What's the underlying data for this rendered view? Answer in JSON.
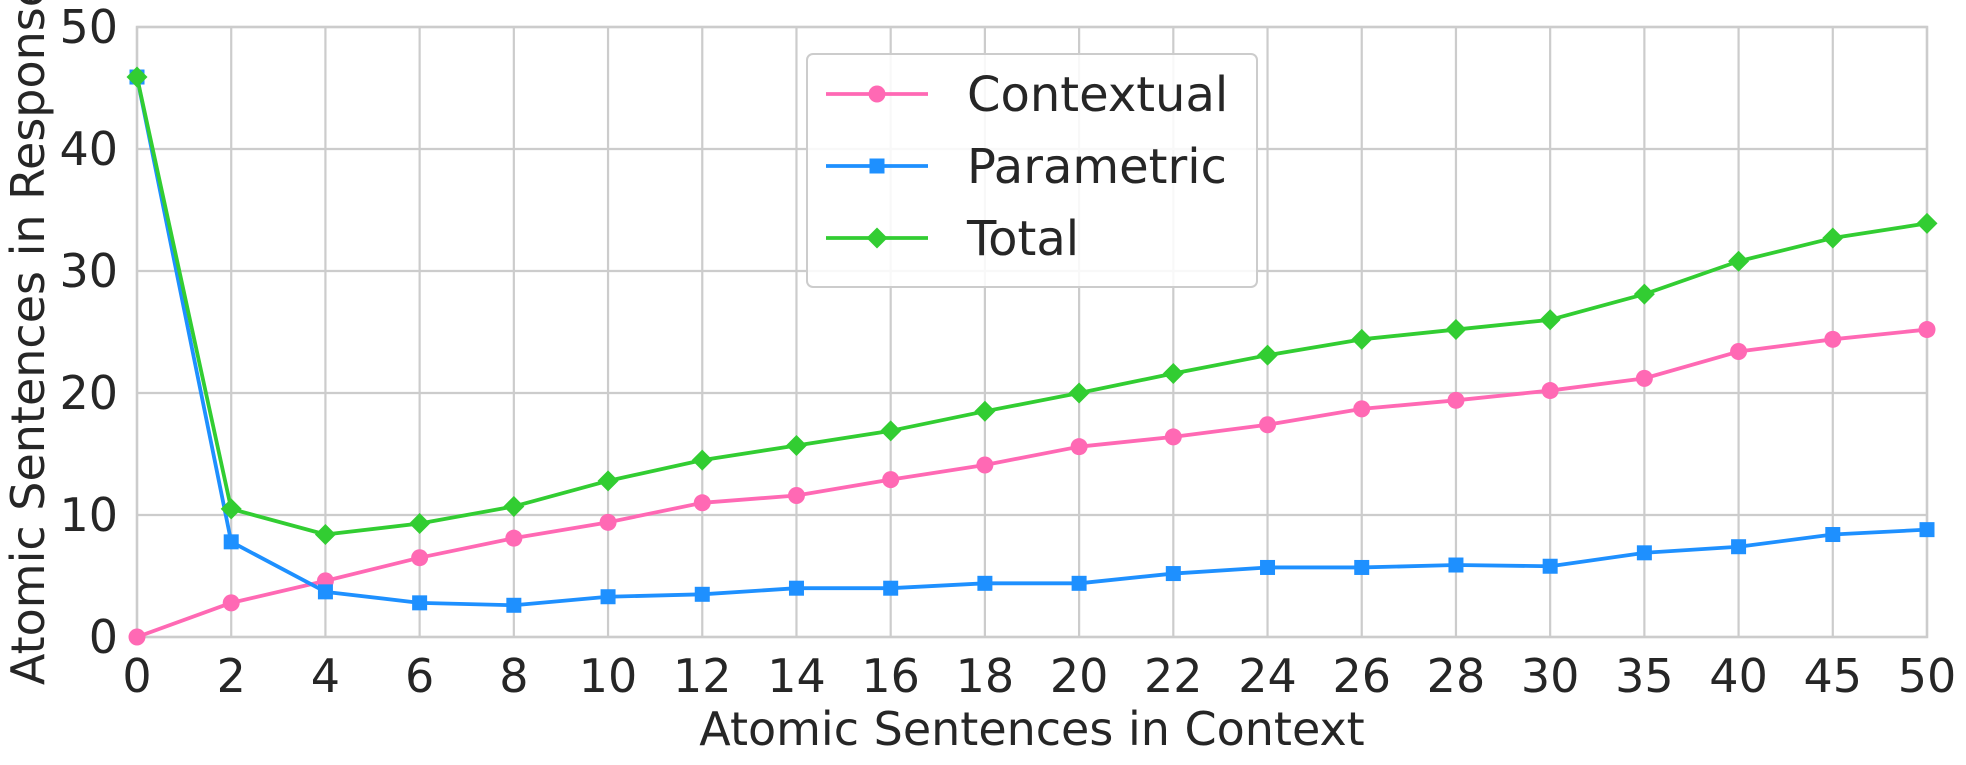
{
  "chart_data": {
    "type": "line",
    "title": "",
    "xlabel": "Atomic Sentences in Context",
    "ylabel": "Atomic Sentences in Response",
    "categories": [
      "0",
      "2",
      "4",
      "6",
      "8",
      "10",
      "12",
      "14",
      "16",
      "18",
      "20",
      "22",
      "24",
      "26",
      "28",
      "30",
      "35",
      "40",
      "45",
      "50"
    ],
    "ylim": [
      0,
      50
    ],
    "yticks": [
      "0",
      "10",
      "20",
      "30",
      "40",
      "50"
    ],
    "grid": true,
    "legend_position": "top-center",
    "series": [
      {
        "name": "Contextual",
        "color": "#ff69b4",
        "marker": "circle",
        "values": [
          0.0,
          2.8,
          4.6,
          6.5,
          8.1,
          9.4,
          11.0,
          11.6,
          12.9,
          14.1,
          15.6,
          16.4,
          17.4,
          18.7,
          19.4,
          20.2,
          21.2,
          23.4,
          24.4,
          25.2
        ]
      },
      {
        "name": "Parametric",
        "color": "#1e90ff",
        "marker": "square",
        "values": [
          45.9,
          7.8,
          3.7,
          2.8,
          2.6,
          3.3,
          3.5,
          4.0,
          4.0,
          4.4,
          4.4,
          5.2,
          5.7,
          5.7,
          5.9,
          5.8,
          6.9,
          7.4,
          8.4,
          8.8
        ]
      },
      {
        "name": "Total",
        "color": "#32cd32",
        "marker": "diamond",
        "values": [
          45.9,
          10.5,
          8.4,
          9.3,
          10.7,
          12.8,
          14.5,
          15.7,
          16.9,
          18.5,
          20.0,
          21.6,
          23.1,
          24.4,
          25.2,
          26.0,
          28.1,
          30.8,
          32.7,
          33.9
        ]
      }
    ]
  }
}
